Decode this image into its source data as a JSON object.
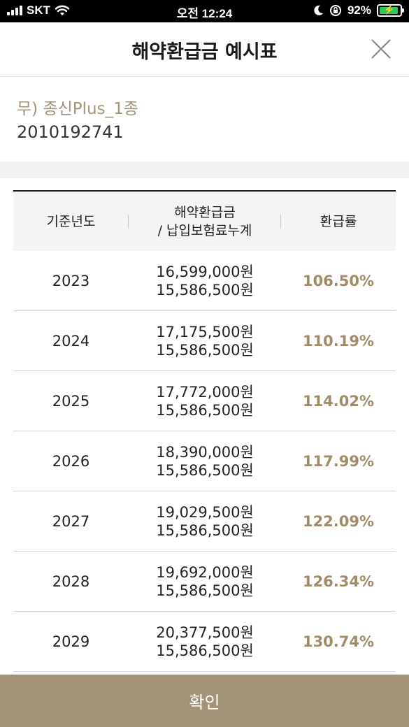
{
  "status_bar": {
    "carrier": "SKT",
    "time": "오전 12:24",
    "battery": "92%",
    "battery_level": 0.92
  },
  "header": {
    "title": "해약환급금 예시표"
  },
  "product": {
    "name": "무) 종신Plus_1종",
    "number": "2010192741"
  },
  "table": {
    "headers": {
      "year": "기준년도",
      "amount_line1": "해약환급금",
      "amount_line2": "/ 납입보험료누계",
      "rate": "환급률"
    },
    "rows": [
      {
        "year": "2023",
        "refund": "16,599,000원",
        "paid": "15,586,500원",
        "rate": "106.50%"
      },
      {
        "year": "2024",
        "refund": "17,175,500원",
        "paid": "15,586,500원",
        "rate": "110.19%"
      },
      {
        "year": "2025",
        "refund": "17,772,000원",
        "paid": "15,586,500원",
        "rate": "114.02%"
      },
      {
        "year": "2026",
        "refund": "18,390,000원",
        "paid": "15,586,500원",
        "rate": "117.99%"
      },
      {
        "year": "2027",
        "refund": "19,029,500원",
        "paid": "15,586,500원",
        "rate": "122.09%"
      },
      {
        "year": "2028",
        "refund": "19,692,000원",
        "paid": "15,586,500원",
        "rate": "126.34%"
      },
      {
        "year": "2029",
        "refund": "20,377,500원",
        "paid": "15,586,500원",
        "rate": "130.74%"
      }
    ]
  },
  "footer": {
    "confirm_label": "확인"
  },
  "colors": {
    "accent": "#a39477",
    "rate_text": "#a08c68",
    "battery": "#33c75a"
  }
}
